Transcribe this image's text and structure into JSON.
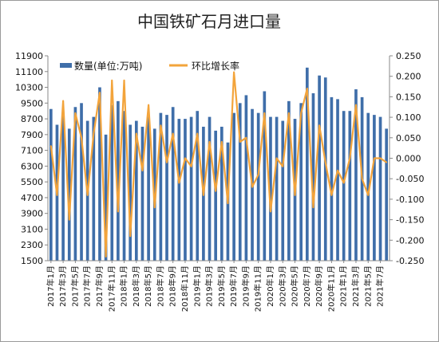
{
  "chart_data": {
    "type": "bar+line",
    "title": "中国铁矿石月进口量",
    "legend": [
      "数量(单位:万吨)",
      "环比增长率"
    ],
    "legend_position": "top-left",
    "colors": {
      "bars": "#3f6ea9",
      "line": "#f3a43b",
      "axis": "#888888"
    },
    "y_left": {
      "min": 1500,
      "max": 11900,
      "ticks": [
        1500,
        2300,
        3100,
        3900,
        4700,
        5500,
        6300,
        7100,
        7900,
        8700,
        9500,
        10300,
        11100,
        11900
      ]
    },
    "y_right": {
      "min": -0.25,
      "max": 0.25,
      "ticks": [
        -0.25,
        -0.2,
        -0.15,
        -0.1,
        -0.05,
        0.0,
        0.05,
        0.1,
        0.15,
        0.2,
        0.25
      ],
      "tick_labels": [
        "-0.250",
        "-0.200",
        "-0.150",
        "-0.100",
        "-0.050",
        "0.000",
        "0.050",
        "0.100",
        "0.150",
        "0.200",
        "0.250"
      ]
    },
    "x_tick_labels": [
      "2017年1月",
      "2017年3月",
      "2017年5月",
      "2017年7月",
      "2017年9月",
      "2017年11月",
      "2018年1月",
      "2018年3月",
      "2018年5月",
      "2018年7月",
      "2018年9月",
      "2018年11月",
      "2019年1月",
      "2019年3月",
      "2019年5月",
      "2019年7月",
      "2019年9月",
      "2019年11月",
      "2020年1月",
      "2020年3月",
      "2020年5月",
      "2020年7月",
      "2020年9月",
      "2020年11月",
      "2021年1月",
      "2021年3月",
      "2021年5月",
      "2021年7月"
    ],
    "series": [
      {
        "name": "数量(单位:万吨)",
        "type": "bar",
        "values": [
          9200,
          8400,
          8900,
          8200,
          9300,
          9500,
          8600,
          8800,
          10300,
          7900,
          9400,
          9600,
          9100,
          8400,
          8600,
          8300,
          8800,
          8200,
          9000,
          8900,
          9300,
          8700,
          8700,
          8800,
          9100,
          8300,
          8800,
          8100,
          8300,
          7500,
          9000,
          9500,
          9900,
          9200,
          9000,
          10100,
          8800,
          8800,
          8600,
          9600,
          8700,
          9500,
          11300,
          10000,
          10900,
          10800,
          9800,
          9700,
          9100,
          9100,
          10200,
          9800,
          9000,
          8900,
          8800,
          8200
        ]
      },
      {
        "name": "环比增长率",
        "type": "line",
        "values": [
          0.03,
          -0.09,
          0.14,
          -0.15,
          0.11,
          0.05,
          -0.09,
          0.06,
          0.16,
          -0.24,
          0.19,
          -0.13,
          0.19,
          -0.19,
          0.06,
          -0.03,
          0.13,
          -0.12,
          0.08,
          -0.01,
          0.06,
          -0.06,
          0.0,
          -0.02,
          0.06,
          -0.09,
          0.04,
          -0.08,
          0.04,
          -0.11,
          0.21,
          0.04,
          0.05,
          -0.07,
          -0.04,
          0.11,
          -0.13,
          0.0,
          -0.02,
          0.11,
          -0.09,
          0.11,
          0.17,
          -0.12,
          0.08,
          -0.01,
          -0.09,
          -0.03,
          -0.06,
          0.0,
          0.13,
          -0.05,
          -0.09,
          0.0,
          0.0,
          -0.01
        ]
      }
    ]
  }
}
